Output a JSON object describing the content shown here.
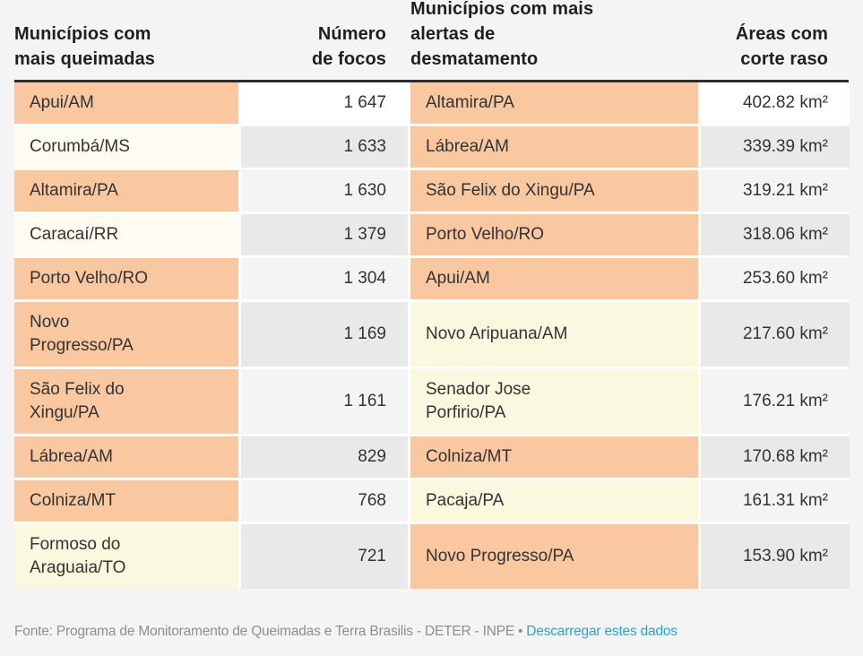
{
  "palette": {
    "page_bg": "#f4f4f4",
    "orange": "#f9c7a0",
    "cream": "#fbf8e0",
    "cream_light": "#fefcf0",
    "white": "#ffffff",
    "stripe_dark": "#e9e9e9",
    "stripe_light": "#f4f4f4",
    "header_rule": "#2d2d2d",
    "header_text": "#1f1f1f",
    "cell_text": "#333333",
    "footer_text": "#8e8e8e",
    "link_blue": "#29a3d8"
  },
  "header": {
    "col1": "Municípios com\nmais queimadas",
    "col2": "Número\nde focos",
    "col3": "Municípios com mais\nalertas de\ndesmatamento",
    "col4": "Áreas com\ncorte raso"
  },
  "rows": [
    {
      "left_name": "Apui/AM",
      "left_bg": "orange",
      "left_value": "1 647",
      "left_value_bg": "white",
      "right_name": "Altamira/PA",
      "right_bg": "orange",
      "right_value": "402.82 km²",
      "right_value_bg": "white"
    },
    {
      "left_name": "Corumbá/MS",
      "left_bg": "cream_light",
      "left_value": "1 633",
      "left_value_bg": "stripe_dark",
      "right_name": "Lábrea/AM",
      "right_bg": "orange",
      "right_value": "339.39 km²",
      "right_value_bg": "stripe_dark"
    },
    {
      "left_name": "Altamira/PA",
      "left_bg": "orange",
      "left_value": "1 630",
      "left_value_bg": "stripe_light",
      "right_name": "São Felix do Xingu/PA",
      "right_bg": "orange",
      "right_value": "319.21 km²",
      "right_value_bg": "stripe_light"
    },
    {
      "left_name": "Caracaí/RR",
      "left_bg": "cream_light",
      "left_value": "1 379",
      "left_value_bg": "stripe_dark",
      "right_name": "Porto Velho/RO",
      "right_bg": "orange",
      "right_value": "318.06 km²",
      "right_value_bg": "stripe_dark"
    },
    {
      "left_name": "Porto Velho/RO",
      "left_bg": "orange",
      "left_value": "1 304",
      "left_value_bg": "stripe_light",
      "right_name": "Apui/AM",
      "right_bg": "orange",
      "right_value": "253.60 km²",
      "right_value_bg": "stripe_light"
    },
    {
      "left_name": "Novo\nProgresso/PA",
      "left_bg": "orange",
      "left_value": "1 169",
      "left_value_bg": "stripe_dark",
      "right_name": "Novo Aripuana/AM",
      "right_bg": "cream",
      "right_value": "217.60 km²",
      "right_value_bg": "stripe_dark"
    },
    {
      "left_name": "São Felix do\nXingu/PA",
      "left_bg": "orange",
      "left_value": "1 161",
      "left_value_bg": "stripe_light",
      "right_name": "Senador Jose\nPorfirio/PA",
      "right_bg": "cream",
      "right_value": "176.21 km²",
      "right_value_bg": "stripe_light"
    },
    {
      "left_name": "Lábrea/AM",
      "left_bg": "orange",
      "left_value": "829",
      "left_value_bg": "stripe_dark",
      "right_name": "Colniza/MT",
      "right_bg": "orange",
      "right_value": "170.68 km²",
      "right_value_bg": "stripe_dark"
    },
    {
      "left_name": "Colniza/MT",
      "left_bg": "orange",
      "left_value": "768",
      "left_value_bg": "stripe_light",
      "right_name": "Pacaja/PA",
      "right_bg": "cream",
      "right_value": "161.31 km²",
      "right_value_bg": "stripe_light"
    },
    {
      "left_name": "Formoso do\nAraguaia/TO",
      "left_bg": "cream",
      "left_value": "721",
      "left_value_bg": "stripe_dark",
      "right_name": "Novo Progresso/PA",
      "right_bg": "orange",
      "right_value": "153.90 km²",
      "right_value_bg": "stripe_dark"
    }
  ],
  "footer": {
    "source_text": "Fonte: Programa de Monitoramento de Queimadas e Terra Brasilis - DETER - INPE",
    "separator": "•",
    "link_label": "Descarregar estes dados"
  },
  "chart_data": {
    "type": "table",
    "tables": [
      {
        "name_header": "Municípios com mais queimadas",
        "value_header": "Número de focos",
        "rows": [
          {
            "name": "Apui/AM",
            "value": 1647,
            "highlighted": true
          },
          {
            "name": "Corumbá/MS",
            "value": 1633,
            "highlighted": false
          },
          {
            "name": "Altamira/PA",
            "value": 1630,
            "highlighted": true
          },
          {
            "name": "Caracaí/RR",
            "value": 1379,
            "highlighted": false
          },
          {
            "name": "Porto Velho/RO",
            "value": 1304,
            "highlighted": true
          },
          {
            "name": "Novo Progresso/PA",
            "value": 1169,
            "highlighted": true
          },
          {
            "name": "São Felix do Xingu/PA",
            "value": 1161,
            "highlighted": true
          },
          {
            "name": "Lábrea/AM",
            "value": 829,
            "highlighted": true
          },
          {
            "name": "Colniza/MT",
            "value": 768,
            "highlighted": true
          },
          {
            "name": "Formoso do Araguaia/TO",
            "value": 721,
            "highlighted": false
          }
        ]
      },
      {
        "name_header": "Municípios com mais alertas de desmatamento",
        "value_header": "Áreas com corte raso",
        "unit": "km²",
        "rows": [
          {
            "name": "Altamira/PA",
            "value": 402.82,
            "highlighted": true
          },
          {
            "name": "Lábrea/AM",
            "value": 339.39,
            "highlighted": true
          },
          {
            "name": "São Felix do Xingu/PA",
            "value": 319.21,
            "highlighted": true
          },
          {
            "name": "Porto Velho/RO",
            "value": 318.06,
            "highlighted": true
          },
          {
            "name": "Apui/AM",
            "value": 253.6,
            "highlighted": true
          },
          {
            "name": "Novo Aripuana/AM",
            "value": 217.6,
            "highlighted": false
          },
          {
            "name": "Senador Jose Porfirio/PA",
            "value": 176.21,
            "highlighted": false
          },
          {
            "name": "Colniza/MT",
            "value": 170.68,
            "highlighted": true
          },
          {
            "name": "Pacaja/PA",
            "value": 161.31,
            "highlighted": false
          },
          {
            "name": "Novo Progresso/PA",
            "value": 153.9,
            "highlighted": true
          }
        ]
      }
    ],
    "highlight_color": "#f9c7a0",
    "layout_hint": "two ranked tables side by side; peach highlight marks municipalities present in both lists"
  }
}
